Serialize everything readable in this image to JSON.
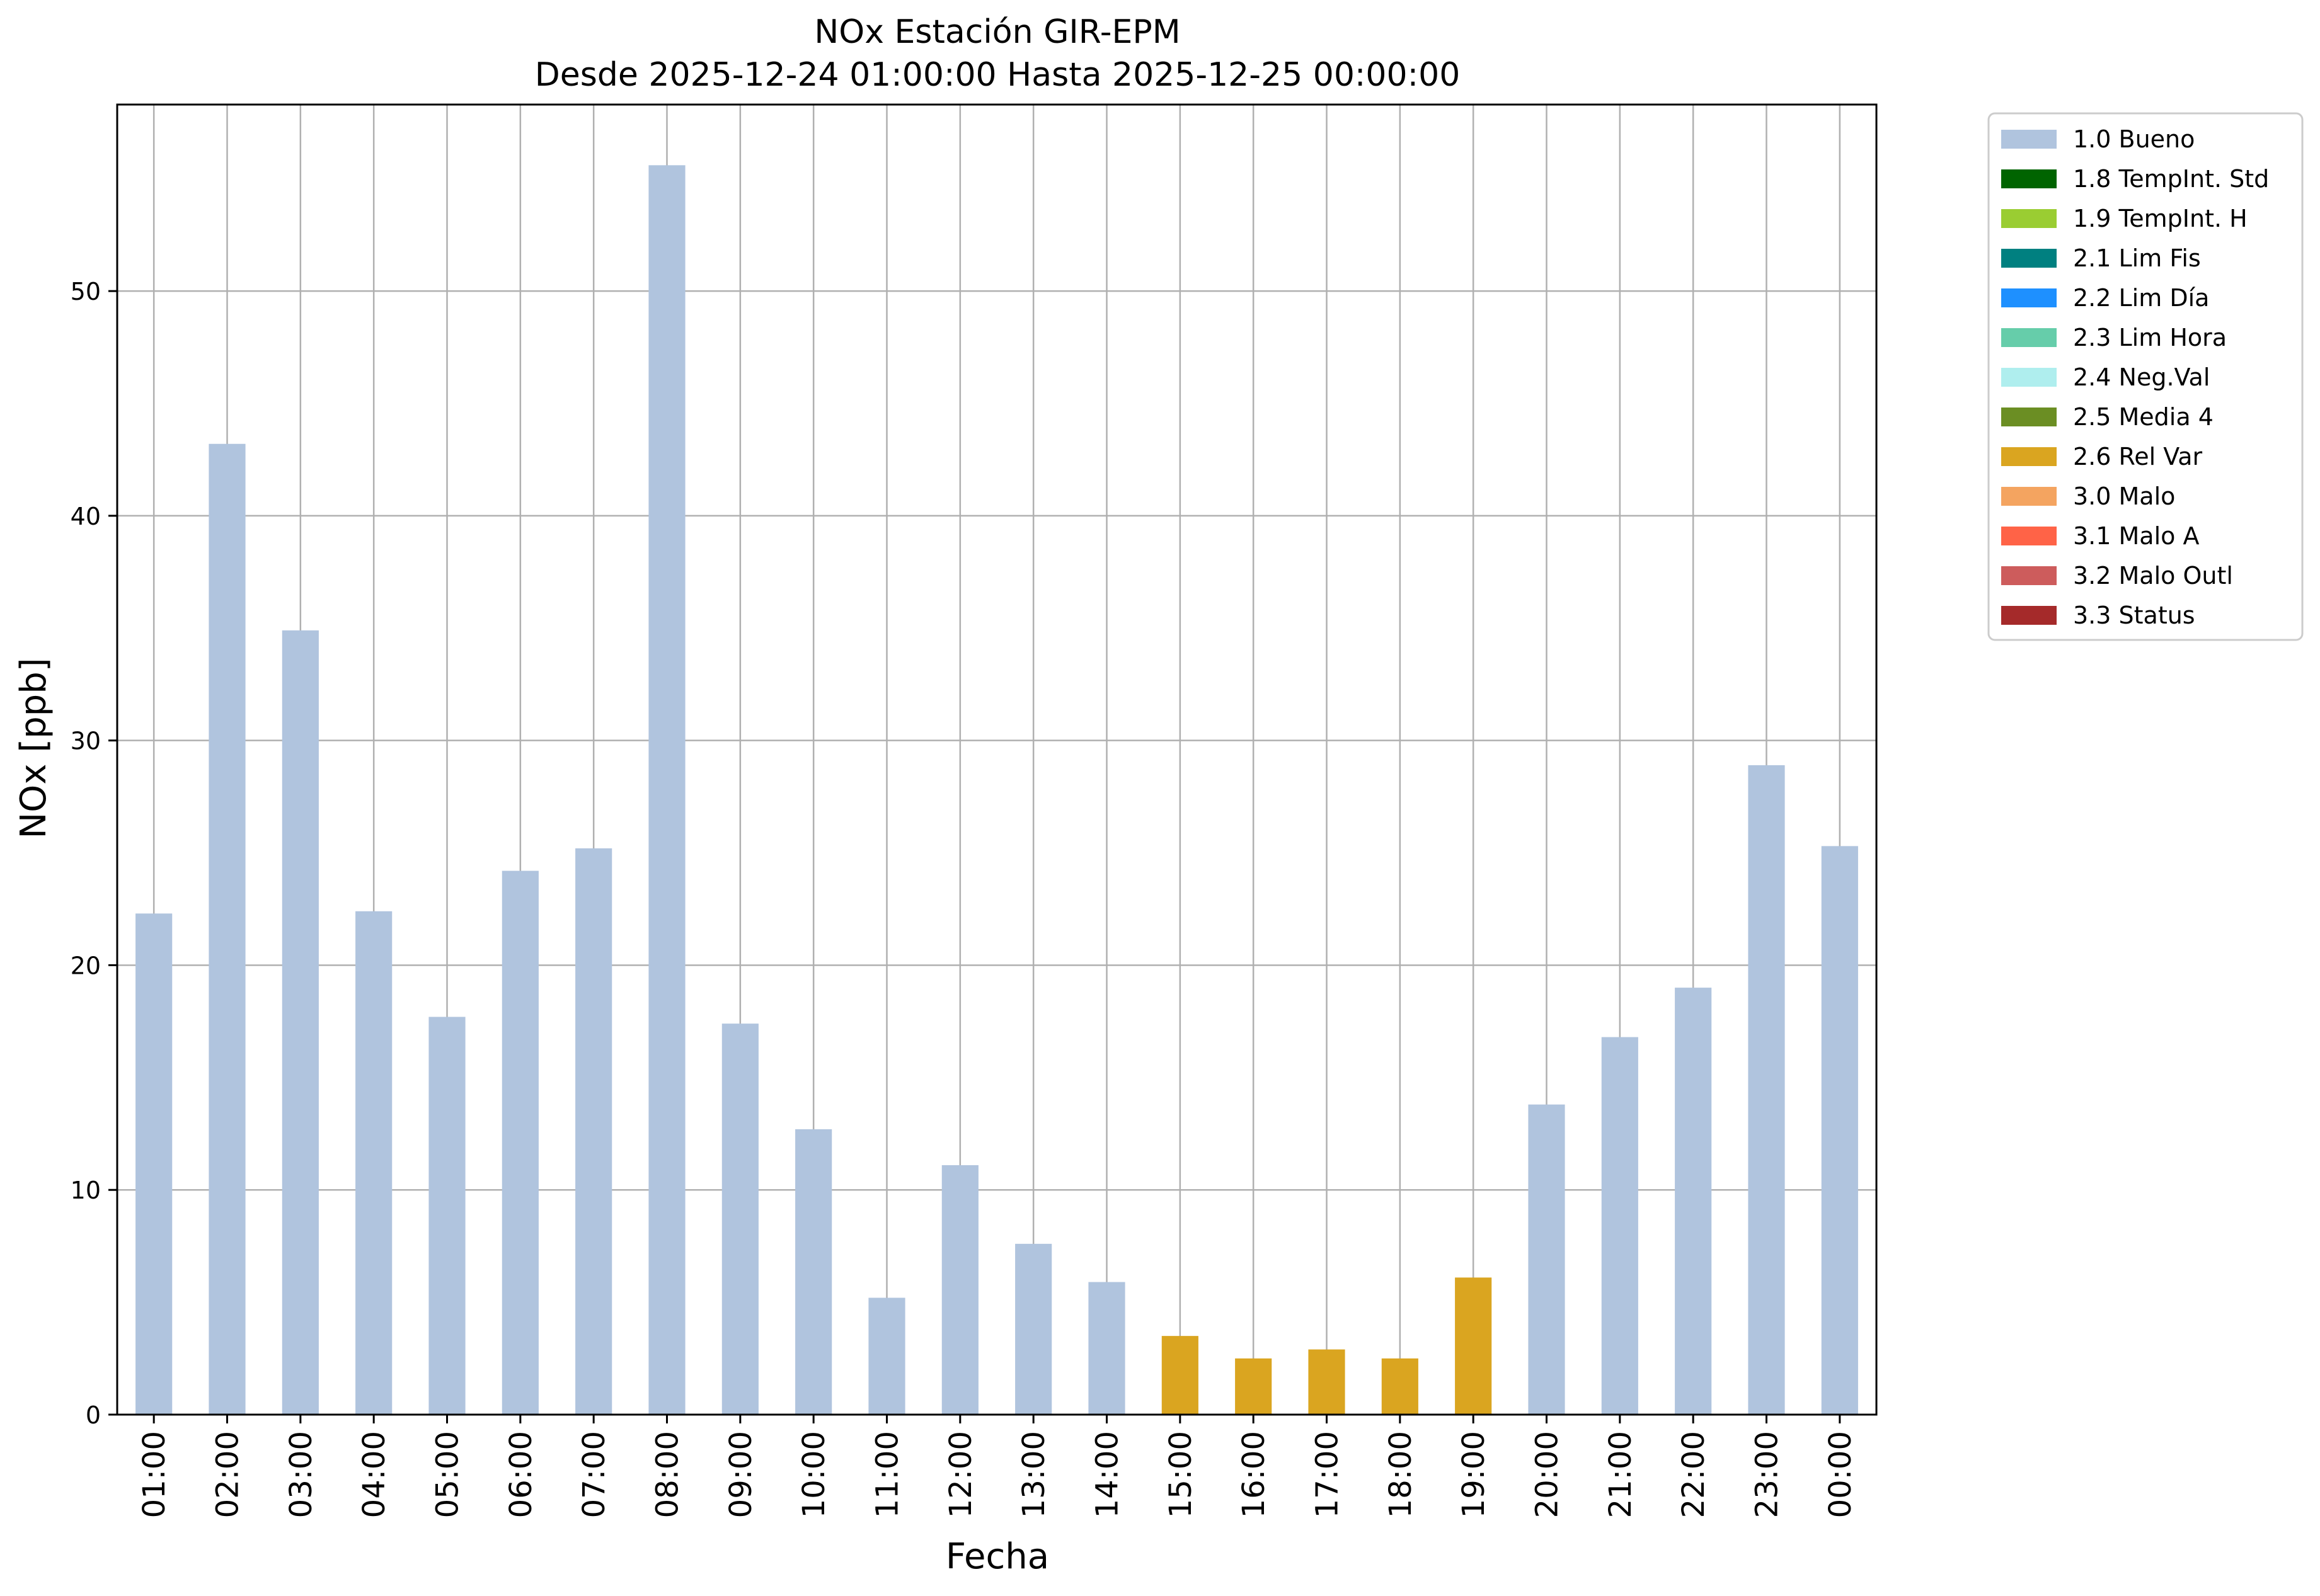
{
  "chart_data": {
    "type": "bar",
    "title": "NOx Estación GIR-EPM",
    "subtitle": "Desde 2025-12-24 01:00:00 Hasta 2025-12-25 00:00:00",
    "xlabel": "Fecha",
    "ylabel": "NOx [ppb]",
    "ylim": [
      0,
      58.3
    ],
    "yticks": [
      0,
      10,
      20,
      30,
      40,
      50
    ],
    "grid": true,
    "legend_position": "outside-top-right",
    "categories": [
      "01:00",
      "02:00",
      "03:00",
      "04:00",
      "05:00",
      "06:00",
      "07:00",
      "08:00",
      "09:00",
      "10:00",
      "11:00",
      "12:00",
      "13:00",
      "14:00",
      "15:00",
      "16:00",
      "17:00",
      "18:00",
      "19:00",
      "20:00",
      "21:00",
      "22:00",
      "23:00",
      "00:00"
    ],
    "values": [
      22.3,
      43.2,
      34.9,
      22.4,
      17.7,
      24.2,
      25.2,
      55.6,
      17.4,
      12.7,
      5.2,
      11.1,
      7.6,
      5.9,
      3.5,
      2.5,
      2.9,
      2.5,
      6.1,
      13.8,
      16.8,
      19.0,
      28.9,
      25.3
    ],
    "flags": [
      "1.0 Bueno",
      "1.0 Bueno",
      "1.0 Bueno",
      "1.0 Bueno",
      "1.0 Bueno",
      "1.0 Bueno",
      "1.0 Bueno",
      "1.0 Bueno",
      "1.0 Bueno",
      "1.0 Bueno",
      "1.0 Bueno",
      "1.0 Bueno",
      "1.0 Bueno",
      "1.0 Bueno",
      "2.6 Rel Var",
      "2.6 Rel Var",
      "2.6 Rel Var",
      "2.6 Rel Var",
      "2.6 Rel Var",
      "1.0 Bueno",
      "1.0 Bueno",
      "1.0 Bueno",
      "1.0 Bueno",
      "1.0 Bueno"
    ],
    "legend": [
      {
        "label": "1.0 Bueno",
        "color": "#b0c4de"
      },
      {
        "label": "1.8 TempInt. Std",
        "color": "#006400"
      },
      {
        "label": "1.9 TempInt. H",
        "color": "#9acd32"
      },
      {
        "label": "2.1 Lim Fis",
        "color": "#008080"
      },
      {
        "label": "2.2 Lim Día",
        "color": "#1e90ff"
      },
      {
        "label": "2.3 Lim Hora",
        "color": "#66cdaa"
      },
      {
        "label": "2.4 Neg.Val",
        "color": "#afeeee"
      },
      {
        "label": "2.5 Media 4",
        "color": "#6b8e23"
      },
      {
        "label": "2.6 Rel Var",
        "color": "#daa520"
      },
      {
        "label": "3.0 Malo",
        "color": "#f4a460"
      },
      {
        "label": "3.1 Malo A",
        "color": "#ff6347"
      },
      {
        "label": "3.2 Malo Outl",
        "color": "#cd5c5c"
      },
      {
        "label": "3.3 Status",
        "color": "#a52a2a"
      }
    ]
  }
}
